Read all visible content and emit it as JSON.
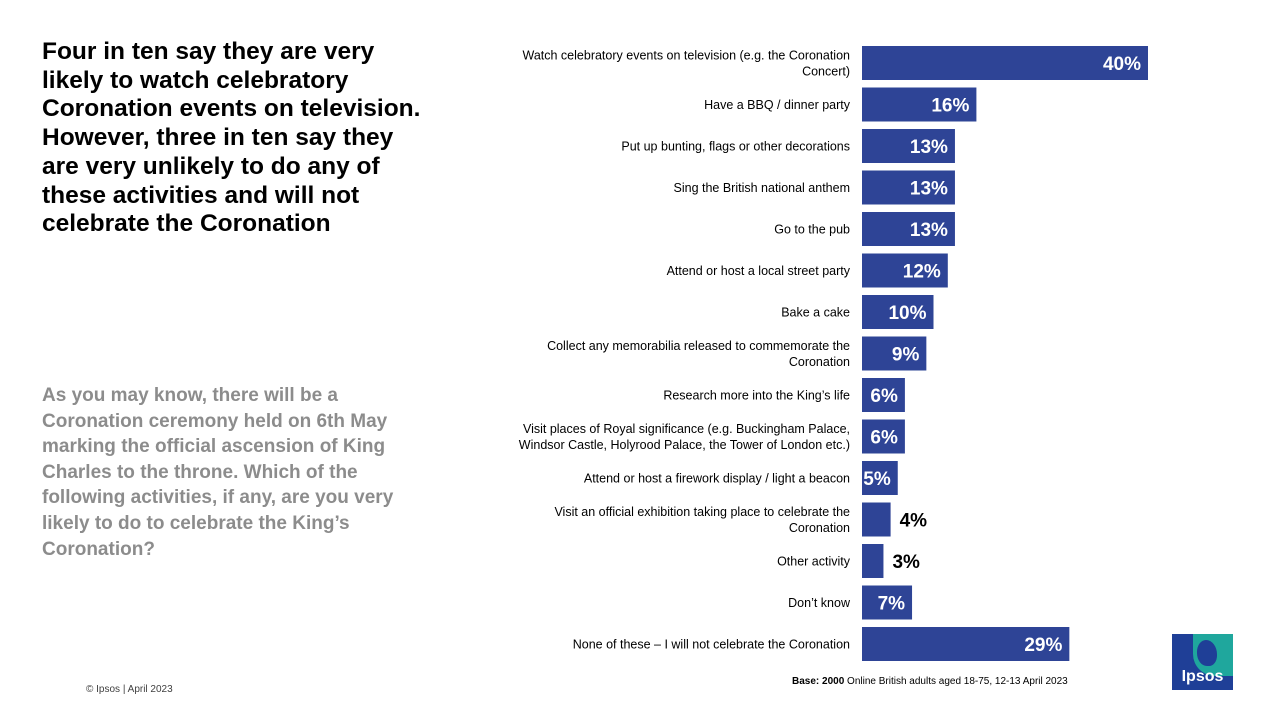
{
  "headline": "Four in ten say they are very likely to watch celebratory Coronation events on television. However, three in ten say they are very unlikely to do any of these activities and will not celebrate the Coronation",
  "question": "As you may know, there will be a Coronation ceremony held on 6th May marking the official ascension of King Charles to the throne. Which of the following activities, if any, are you very likely to do to celebrate the King’s Coronation?",
  "footer": {
    "copyright": "© Ipsos | April 2023",
    "base_label": "Base: 2000",
    "base_text": " Online British adults aged 18-75, 12-13 April 2023"
  },
  "logo": {
    "text": "Ipsos",
    "icon": "ipsos-logo-icon"
  },
  "colors": {
    "bar": "#2e4496",
    "label_inside": "#ffffff",
    "label_outside": "#000000"
  },
  "chart_data": {
    "type": "bar",
    "orientation": "horizontal",
    "value_unit": "%",
    "xlim": [
      0,
      40
    ],
    "grid": false,
    "categories": [
      [
        "Watch celebratory events on television (e.g. the Coronation",
        "Concert)"
      ],
      [
        "Have a BBQ / dinner party"
      ],
      [
        "Put up bunting, flags or other decorations"
      ],
      [
        "Sing the British national anthem"
      ],
      [
        "Go to the pub"
      ],
      [
        "Attend or host a local street party"
      ],
      [
        "Bake a cake"
      ],
      [
        "Collect any memorabilia released to commemorate the",
        "Coronation"
      ],
      [
        "Research more into the King’s life"
      ],
      [
        "Visit places of Royal significance (e.g. Buckingham Palace,",
        "Windsor Castle, Holyrood Palace, the Tower of London etc.)"
      ],
      [
        "Attend or host a firework display / light a beacon"
      ],
      [
        "Visit an official exhibition taking place to celebrate the",
        "Coronation"
      ],
      [
        "Other activity"
      ],
      [
        "Don’t know"
      ],
      [
        "None of these – I will  not celebrate the Coronation"
      ]
    ],
    "values": [
      40,
      16,
      13,
      13,
      13,
      12,
      10,
      9,
      6,
      6,
      5,
      4,
      3,
      7,
      29
    ],
    "labels": [
      "40%",
      "16%",
      "13%",
      "13%",
      "13%",
      "12%",
      "10%",
      "9%",
      "6%",
      "6%",
      "5%",
      "4%",
      "3%",
      "7%",
      "29%"
    ]
  }
}
